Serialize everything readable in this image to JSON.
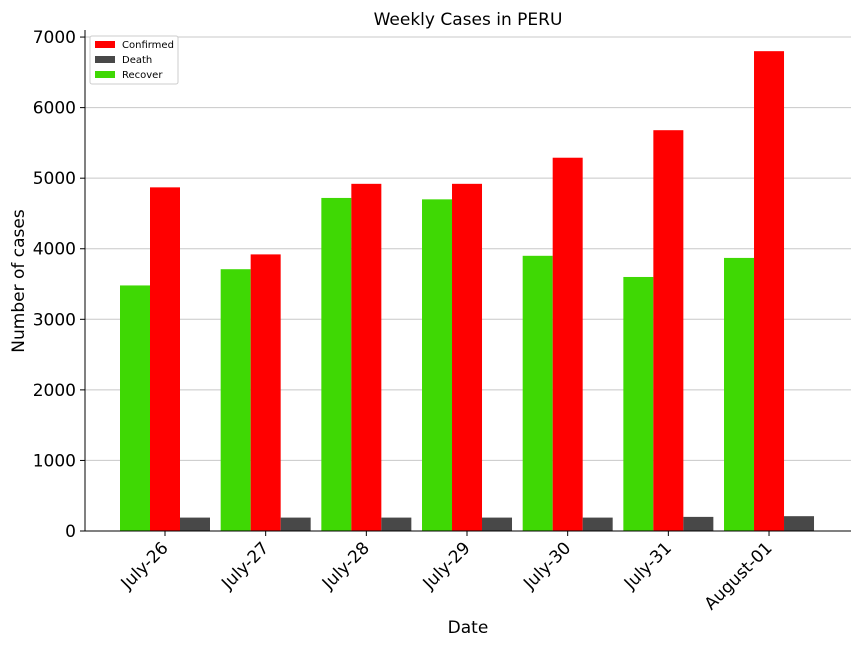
{
  "chart_data": {
    "type": "bar",
    "title": "Weekly Cases in PERU",
    "xlabel": "Date",
    "ylabel": "Number of cases",
    "categories": [
      "July-26",
      "July-27",
      "July-28",
      "July-29",
      "July-30",
      "July-31",
      "August-01"
    ],
    "series": [
      {
        "name": "Recover",
        "color": "#3fd804",
        "values": [
          3480,
          3710,
          4720,
          4700,
          3900,
          3600,
          3870
        ]
      },
      {
        "name": "Confirmed",
        "color": "#ff0000",
        "values": [
          4870,
          3920,
          4920,
          4920,
          5290,
          5680,
          6800
        ]
      },
      {
        "name": "Death",
        "color": "#484848",
        "values": [
          190,
          190,
          190,
          190,
          190,
          200,
          210
        ]
      }
    ],
    "legend_order": [
      "Confirmed",
      "Death",
      "Recover"
    ],
    "legend_position": "top-left",
    "ylim": [
      0,
      7100
    ],
    "yticks": [
      0,
      1000,
      2000,
      3000,
      4000,
      5000,
      6000,
      7000
    ],
    "grid": "horizontal"
  }
}
